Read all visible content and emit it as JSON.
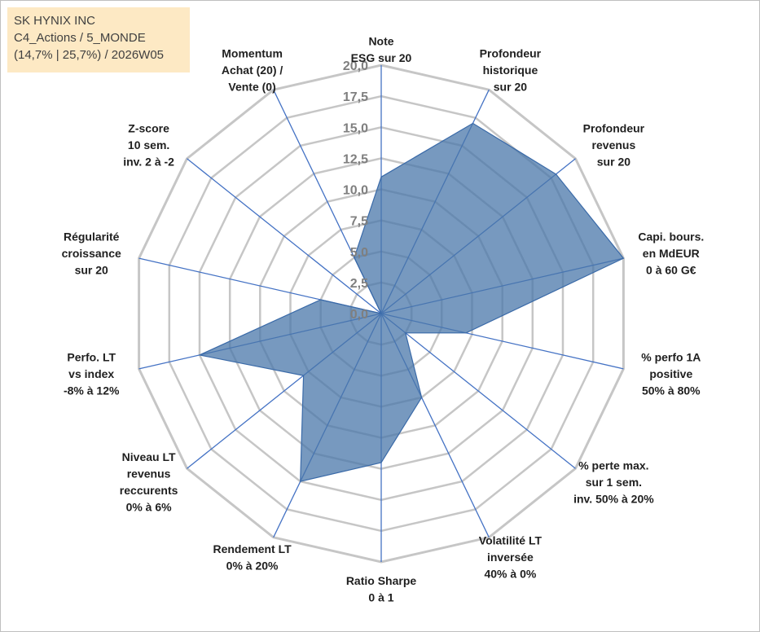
{
  "info": {
    "company": "SK HYNIX INC",
    "category": "C4_Actions / 5_MONDE",
    "stats": "(14,7% | 25,7%) / 2026W05"
  },
  "chart_data": {
    "type": "radar",
    "title": "",
    "rmin": 0,
    "rmax": 20,
    "tick_labels": [
      "0,0",
      "2,5",
      "5,0",
      "7,5",
      "10,0",
      "12,5",
      "15,0",
      "17,5",
      "20,0"
    ],
    "ticks": [
      0,
      2.5,
      5,
      7.5,
      10,
      12.5,
      15,
      17.5,
      20
    ],
    "axes": [
      {
        "label": [
          "Note",
          "ESG sur 20"
        ],
        "value": 11.0
      },
      {
        "label": [
          "Profondeur",
          "historique",
          "sur 20"
        ],
        "value": 17.0
      },
      {
        "label": [
          "Profondeur",
          "revenus",
          "sur 20"
        ],
        "value": 18.0
      },
      {
        "label": [
          "Capi. bours.",
          "en MdEUR",
          "0 à 60 G€"
        ],
        "value": 20.0
      },
      {
        "label": [
          "% perfo 1A",
          "positive",
          "50% à 80%"
        ],
        "value": 7.0
      },
      {
        "label": [
          "% perte max.",
          "sur 1 sem.",
          "inv. 50% à 20%"
        ],
        "value": 2.5
      },
      {
        "label": [
          "Volatilité LT",
          "inversée",
          "40% à 0%"
        ],
        "value": 7.5
      },
      {
        "label": [
          "Ratio Sharpe",
          "0 à 1"
        ],
        "value": 12.0
      },
      {
        "label": [
          "Rendement LT",
          "0% à 20%"
        ],
        "value": 15.0
      },
      {
        "label": [
          "Niveau LT",
          "revenus",
          "reccurents",
          "0% à 6%"
        ],
        "value": 8.0
      },
      {
        "label": [
          "Perfo. LT",
          "vs index",
          "-8% à 12%"
        ],
        "value": 15.0
      },
      {
        "label": [
          "Régularité",
          "croissance",
          "sur 20"
        ],
        "value": 5.0
      },
      {
        "label": [
          "Z-score",
          "10 sem.",
          "inv. 2 à -2"
        ],
        "value": 0.0
      },
      {
        "label": [
          "Momentum",
          "Achat (20) /",
          "Vente (0)"
        ],
        "value": 5.0
      }
    ],
    "colors": {
      "fill": "#4a77aa",
      "fill_opacity": "0.75",
      "stroke": "#3a6aa8",
      "spoke": "#4472c4",
      "grid": "#c6c6c6"
    }
  }
}
